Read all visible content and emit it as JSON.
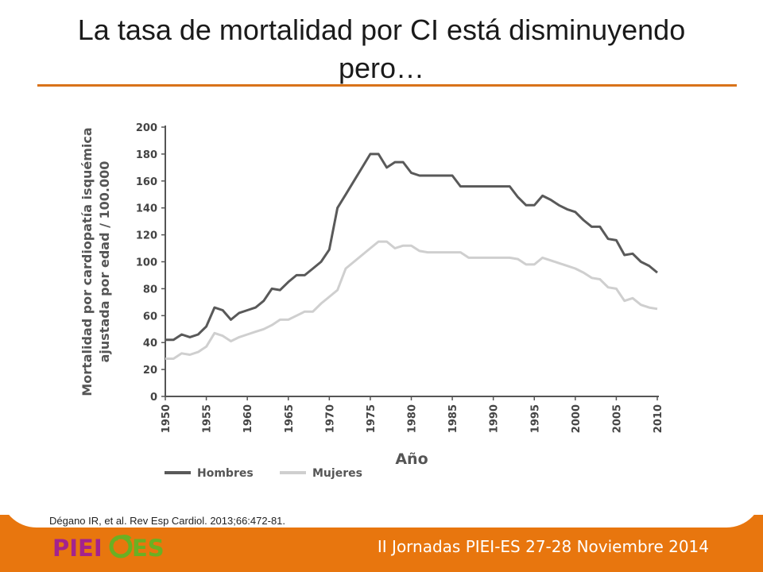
{
  "slide": {
    "title": "La tasa de mortalidad por CI está disminuyendo pero…",
    "citation": "Dégano IR, et al. Rev Esp Cardiol. 2013;66:472-81.",
    "footer": "II Jornadas PIEI-ES 27-28 Noviembre 2014",
    "logo_text": "PIEI ES",
    "accent_color": "#e8760e"
  },
  "chart_data": {
    "type": "line",
    "title": "",
    "xlabel": "Año",
    "ylabel_lines": [
      "Mortalidad por cardiopatía isquémica",
      "ajustada por edad / 100.000"
    ],
    "xlim": [
      1950,
      2010
    ],
    "ylim": [
      0,
      200
    ],
    "xticks": [
      "1950",
      "1955",
      "1960",
      "1965",
      "1970",
      "1975",
      "1980",
      "1985",
      "1990",
      "1995",
      "2000",
      "2005",
      "2010"
    ],
    "yticks": [
      "0",
      "20",
      "40",
      "60",
      "80",
      "100",
      "120",
      "140",
      "160",
      "180",
      "200"
    ],
    "legend_position": "bottom",
    "grid": false,
    "x": [
      1950,
      1951,
      1952,
      1953,
      1954,
      1955,
      1956,
      1957,
      1958,
      1959,
      1960,
      1961,
      1962,
      1963,
      1964,
      1965,
      1966,
      1967,
      1968,
      1969,
      1970,
      1971,
      1972,
      1973,
      1974,
      1975,
      1976,
      1977,
      1978,
      1979,
      1980,
      1981,
      1982,
      1983,
      1984,
      1985,
      1986,
      1987,
      1988,
      1989,
      1990,
      1991,
      1992,
      1993,
      1994,
      1995,
      1996,
      1997,
      1998,
      1999,
      2000,
      2001,
      2002,
      2003,
      2004,
      2005,
      2006,
      2007,
      2008,
      2009,
      2010
    ],
    "series": [
      {
        "name": "Hombres",
        "color": "#595959",
        "values": [
          42,
          42,
          46,
          44,
          46,
          52,
          66,
          64,
          57,
          62,
          64,
          66,
          71,
          80,
          79,
          85,
          90,
          90,
          95,
          100,
          109,
          140,
          150,
          160,
          170,
          180,
          180,
          170,
          174,
          174,
          166,
          164,
          164,
          164,
          164,
          164,
          156,
          156,
          156,
          156,
          156,
          156,
          156,
          148,
          142,
          142,
          149,
          146,
          142,
          139,
          137,
          131,
          126,
          126,
          117,
          116,
          105,
          106,
          100,
          97,
          92
        ]
      },
      {
        "name": "Mujeres",
        "color": "#cfcfcf",
        "values": [
          28,
          28,
          32,
          31,
          33,
          37,
          47,
          45,
          41,
          44,
          46,
          48,
          50,
          53,
          57,
          57,
          60,
          63,
          63,
          69,
          74,
          79,
          95,
          100,
          105,
          110,
          115,
          115,
          110,
          112,
          112,
          108,
          107,
          107,
          107,
          107,
          107,
          103,
          103,
          103,
          103,
          103,
          103,
          102,
          98,
          98,
          103,
          101,
          99,
          97,
          95,
          92,
          88,
          87,
          81,
          80,
          71,
          73,
          68,
          66,
          65
        ]
      }
    ]
  }
}
